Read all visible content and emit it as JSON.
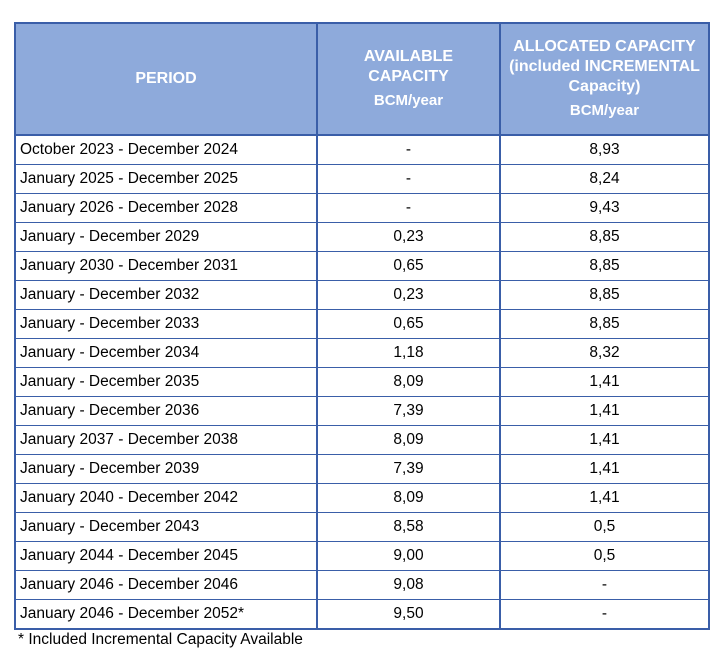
{
  "table": {
    "headers": {
      "period": "PERIOD",
      "available": [
        "AVAILABLE",
        "CAPACITY"
      ],
      "available_unit": "BCM/year",
      "allocated": [
        "ALLOCATED CAPACITY",
        "(included INCREMENTAL",
        "Capacity)"
      ],
      "allocated_unit": "BCM/year"
    },
    "rows": [
      {
        "period": "October 2023 - December 2024",
        "available": "-",
        "allocated": "8,93"
      },
      {
        "period": "January 2025 - December 2025",
        "available": "-",
        "allocated": "8,24"
      },
      {
        "period": "January 2026 - December 2028",
        "available": "-",
        "allocated": "9,43"
      },
      {
        "period": "January - December 2029",
        "available": "0,23",
        "allocated": "8,85"
      },
      {
        "period": "January 2030 - December 2031",
        "available": "0,65",
        "allocated": "8,85"
      },
      {
        "period": "January - December 2032",
        "available": "0,23",
        "allocated": "8,85"
      },
      {
        "period": "January - December 2033",
        "available": "0,65",
        "allocated": "8,85"
      },
      {
        "period": "January - December 2034",
        "available": "1,18",
        "allocated": "8,32"
      },
      {
        "period": "January - December 2035",
        "available": "8,09",
        "allocated": "1,41"
      },
      {
        "period": "January - December 2036",
        "available": "7,39",
        "allocated": "1,41"
      },
      {
        "period": "January 2037 - December 2038",
        "available": "8,09",
        "allocated": "1,41"
      },
      {
        "period": "January - December 2039",
        "available": "7,39",
        "allocated": "1,41"
      },
      {
        "period": "January 2040 - December 2042",
        "available": "8,09",
        "allocated": "1,41"
      },
      {
        "period": "January - December 2043",
        "available": "8,58",
        "allocated": "0,5"
      },
      {
        "period": "January 2044 - December 2045",
        "available": "9,00",
        "allocated": "0,5"
      },
      {
        "period": "January 2046 - December 2046",
        "available": "9,08",
        "allocated": "-"
      },
      {
        "period": "January 2046 - December 2052*",
        "available": "9,50",
        "allocated": "-"
      }
    ]
  },
  "footnote": "* Included Incremental Capacity Available",
  "colors": {
    "header_bg": "#8eaadb",
    "header_text": "#ffffff",
    "border": "#3a5ea8"
  }
}
